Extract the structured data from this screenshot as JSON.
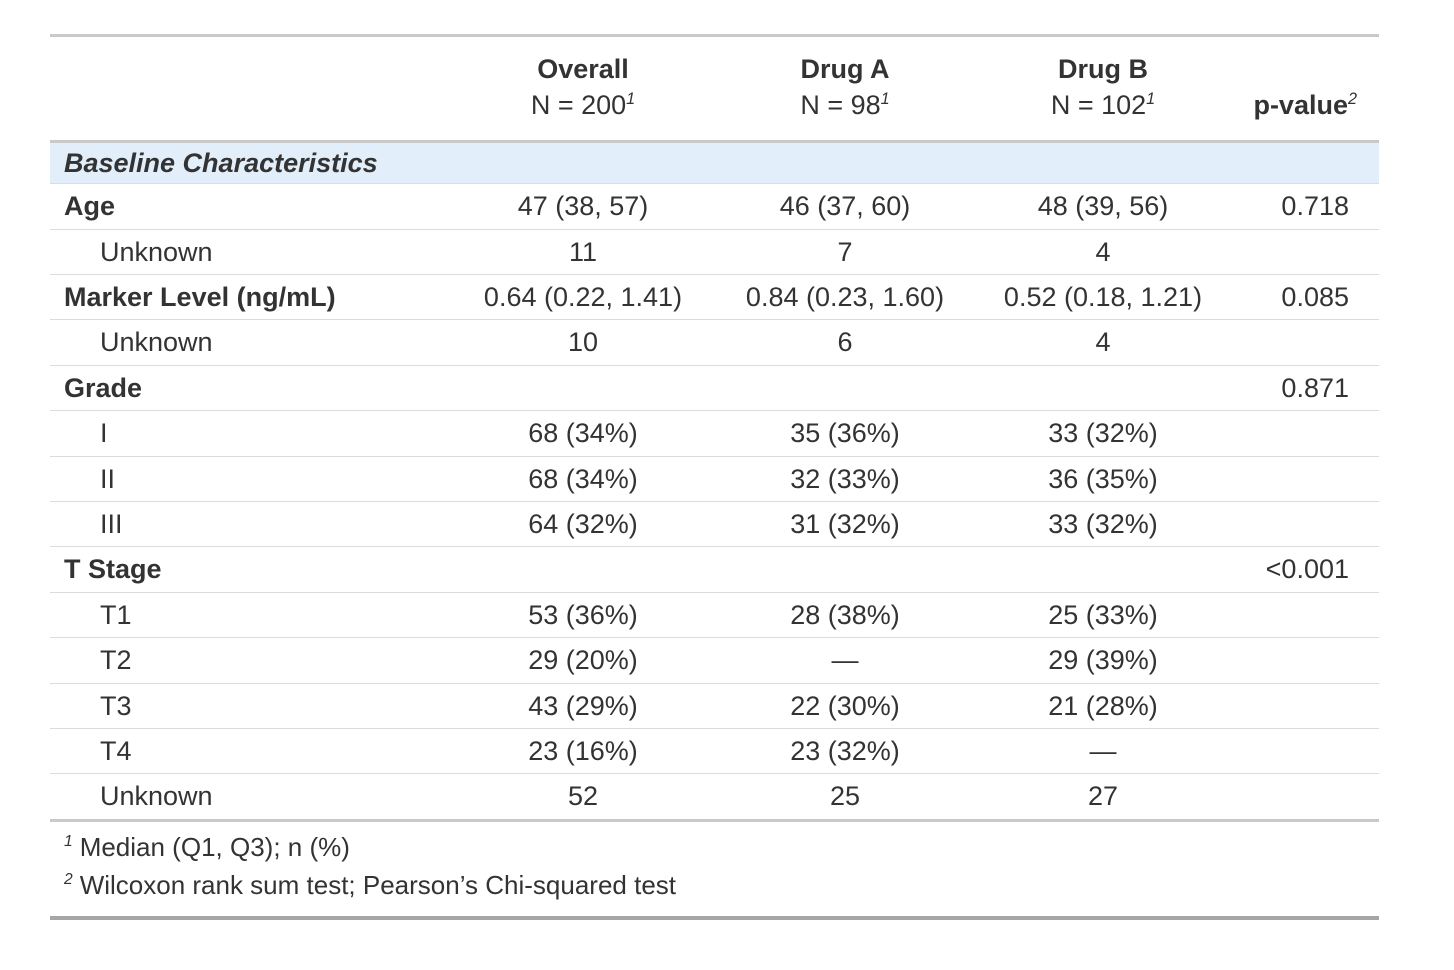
{
  "table": {
    "header": {
      "columns": [
        {
          "title": "Overall",
          "n": "N = 200",
          "sup": "1"
        },
        {
          "title": "Drug A",
          "n": "N = 98",
          "sup": "1"
        },
        {
          "title": "Drug B",
          "n": "N = 102",
          "sup": "1"
        }
      ],
      "pvalue_label": "p-value",
      "pvalue_sup": "2"
    },
    "section_header": "Baseline Characteristics",
    "rows": [
      {
        "type": "variable",
        "label": "Age",
        "overall": "47 (38, 57)",
        "drug_a": "46 (37, 60)",
        "drug_b": "48 (39, 56)",
        "p": "0.718"
      },
      {
        "type": "level",
        "label": "Unknown",
        "overall": "11",
        "drug_a": "7",
        "drug_b": "4",
        "p": ""
      },
      {
        "type": "variable",
        "label": "Marker Level (ng/mL)",
        "overall": "0.64 (0.22, 1.41)",
        "drug_a": "0.84 (0.23, 1.60)",
        "drug_b": "0.52 (0.18, 1.21)",
        "p": "0.085"
      },
      {
        "type": "level",
        "label": "Unknown",
        "overall": "10",
        "drug_a": "6",
        "drug_b": "4",
        "p": ""
      },
      {
        "type": "variable",
        "label": "Grade",
        "overall": "",
        "drug_a": "",
        "drug_b": "",
        "p": "0.871"
      },
      {
        "type": "level",
        "label": "I",
        "overall": "68 (34%)",
        "drug_a": "35 (36%)",
        "drug_b": "33 (32%)",
        "p": ""
      },
      {
        "type": "level",
        "label": "II",
        "overall": "68 (34%)",
        "drug_a": "32 (33%)",
        "drug_b": "36 (35%)",
        "p": ""
      },
      {
        "type": "level",
        "label": "III",
        "overall": "64 (32%)",
        "drug_a": "31 (32%)",
        "drug_b": "33 (32%)",
        "p": ""
      },
      {
        "type": "variable",
        "label": "T Stage",
        "overall": "",
        "drug_a": "",
        "drug_b": "",
        "p": "<0.001"
      },
      {
        "type": "level",
        "label": "T1",
        "overall": "53 (36%)",
        "drug_a": "28 (38%)",
        "drug_b": "25 (33%)",
        "p": ""
      },
      {
        "type": "level",
        "label": "T2",
        "overall": "29 (20%)",
        "drug_a": "—",
        "drug_b": "29 (39%)",
        "p": ""
      },
      {
        "type": "level",
        "label": "T3",
        "overall": "43 (29%)",
        "drug_a": "22 (30%)",
        "drug_b": "21 (28%)",
        "p": ""
      },
      {
        "type": "level",
        "label": "T4",
        "overall": "23 (16%)",
        "drug_a": "23 (32%)",
        "drug_b": "—",
        "p": ""
      },
      {
        "type": "level",
        "label": "Unknown",
        "overall": "52",
        "drug_a": "25",
        "drug_b": "27",
        "p": ""
      }
    ],
    "footnotes": [
      {
        "sup": "1",
        "text": "Median (Q1, Q3); n (%)"
      },
      {
        "sup": "2",
        "text": "Wilcoxon rank sum test; Pearson’s Chi-squared test"
      }
    ],
    "colors": {
      "section_bg": "#e2eefa",
      "border_strong": "#c9c9c9",
      "border_light": "#dcdcdc",
      "border_heavy": "#a6a6a6",
      "text": "#333333"
    }
  }
}
